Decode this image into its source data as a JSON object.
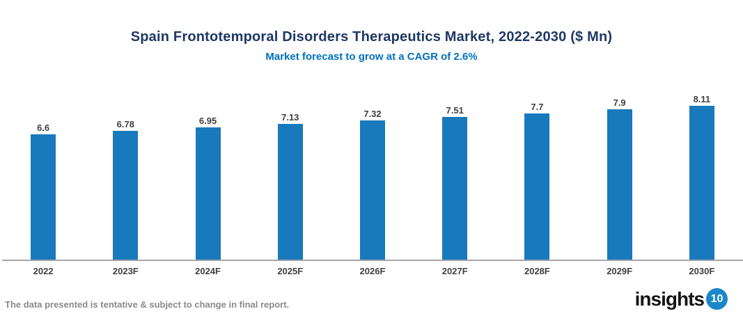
{
  "chart_data": {
    "type": "bar",
    "title": "Spain Frontotemporal Disorders Therapeutics Market, 2022-2030 ($ Mn)",
    "subtitle": "Market forecast to grow at a CAGR of 2.6%",
    "categories": [
      "2022",
      "2023F",
      "2024F",
      "2025F",
      "2026F",
      "2027F",
      "2028F",
      "2029F",
      "2030F"
    ],
    "values": [
      6.6,
      6.78,
      6.95,
      7.13,
      7.32,
      7.51,
      7.7,
      7.9,
      8.11
    ],
    "value_unit": "$ Mn",
    "xlabel": "",
    "ylabel": "",
    "ylim": [
      0,
      8.9
    ],
    "grid": false,
    "legend_position": "none",
    "data_labels": true,
    "colors": {
      "bar": "#1879bd",
      "title": "#1f3864",
      "subtitle": "#0070c0",
      "axis_line": "#a6a6a6",
      "data_label": "#404040",
      "tick_label": "#404040"
    }
  },
  "footer": {
    "disclaimer": "The data presented is tentative & subject to change in final report."
  },
  "logo": {
    "brand": "insights",
    "badge": "10",
    "badge_color": "#1a87c9"
  }
}
